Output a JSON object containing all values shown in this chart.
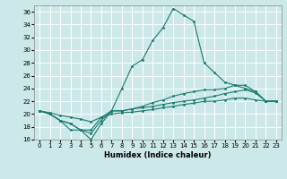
{
  "xlabel": "Humidex (Indice chaleur)",
  "bg_color": "#cde8e8",
  "grid_color": "#ffffff",
  "line_color": "#1a7a6e",
  "xlim": [
    -0.5,
    23.5
  ],
  "ylim": [
    16,
    37
  ],
  "yticks": [
    16,
    18,
    20,
    22,
    24,
    26,
    28,
    30,
    32,
    34,
    36
  ],
  "xticks": [
    0,
    1,
    2,
    3,
    4,
    5,
    6,
    7,
    8,
    9,
    10,
    11,
    12,
    13,
    14,
    15,
    16,
    17,
    18,
    19,
    20,
    21,
    22,
    23
  ],
  "line1_y": [
    20.5,
    20.0,
    19.0,
    17.5,
    17.5,
    16.0,
    18.5,
    20.5,
    24.0,
    27.5,
    28.5,
    31.5,
    33.5,
    36.5,
    35.5,
    34.5,
    28.0,
    26.5,
    25.0,
    24.5,
    24.0,
    23.5,
    22.0,
    22.0
  ],
  "line2_y": [
    20.5,
    20.0,
    19.0,
    18.5,
    17.5,
    17.0,
    19.0,
    20.5,
    20.5,
    20.8,
    21.2,
    21.8,
    22.2,
    22.8,
    23.2,
    23.5,
    23.8,
    23.8,
    24.0,
    24.5,
    24.5,
    23.5,
    22.0,
    22.0
  ],
  "line3_y": [
    20.5,
    20.0,
    19.0,
    18.5,
    17.5,
    17.5,
    19.5,
    20.5,
    20.5,
    20.8,
    21.0,
    21.2,
    21.5,
    21.8,
    22.0,
    22.2,
    22.5,
    22.8,
    23.2,
    23.5,
    23.8,
    23.3,
    22.0,
    22.0
  ],
  "line4_y": [
    20.5,
    20.2,
    19.8,
    19.5,
    19.2,
    18.8,
    19.5,
    20.0,
    20.2,
    20.3,
    20.5,
    20.7,
    21.0,
    21.2,
    21.5,
    21.7,
    22.0,
    22.0,
    22.2,
    22.5,
    22.5,
    22.2,
    22.0,
    22.0
  ]
}
